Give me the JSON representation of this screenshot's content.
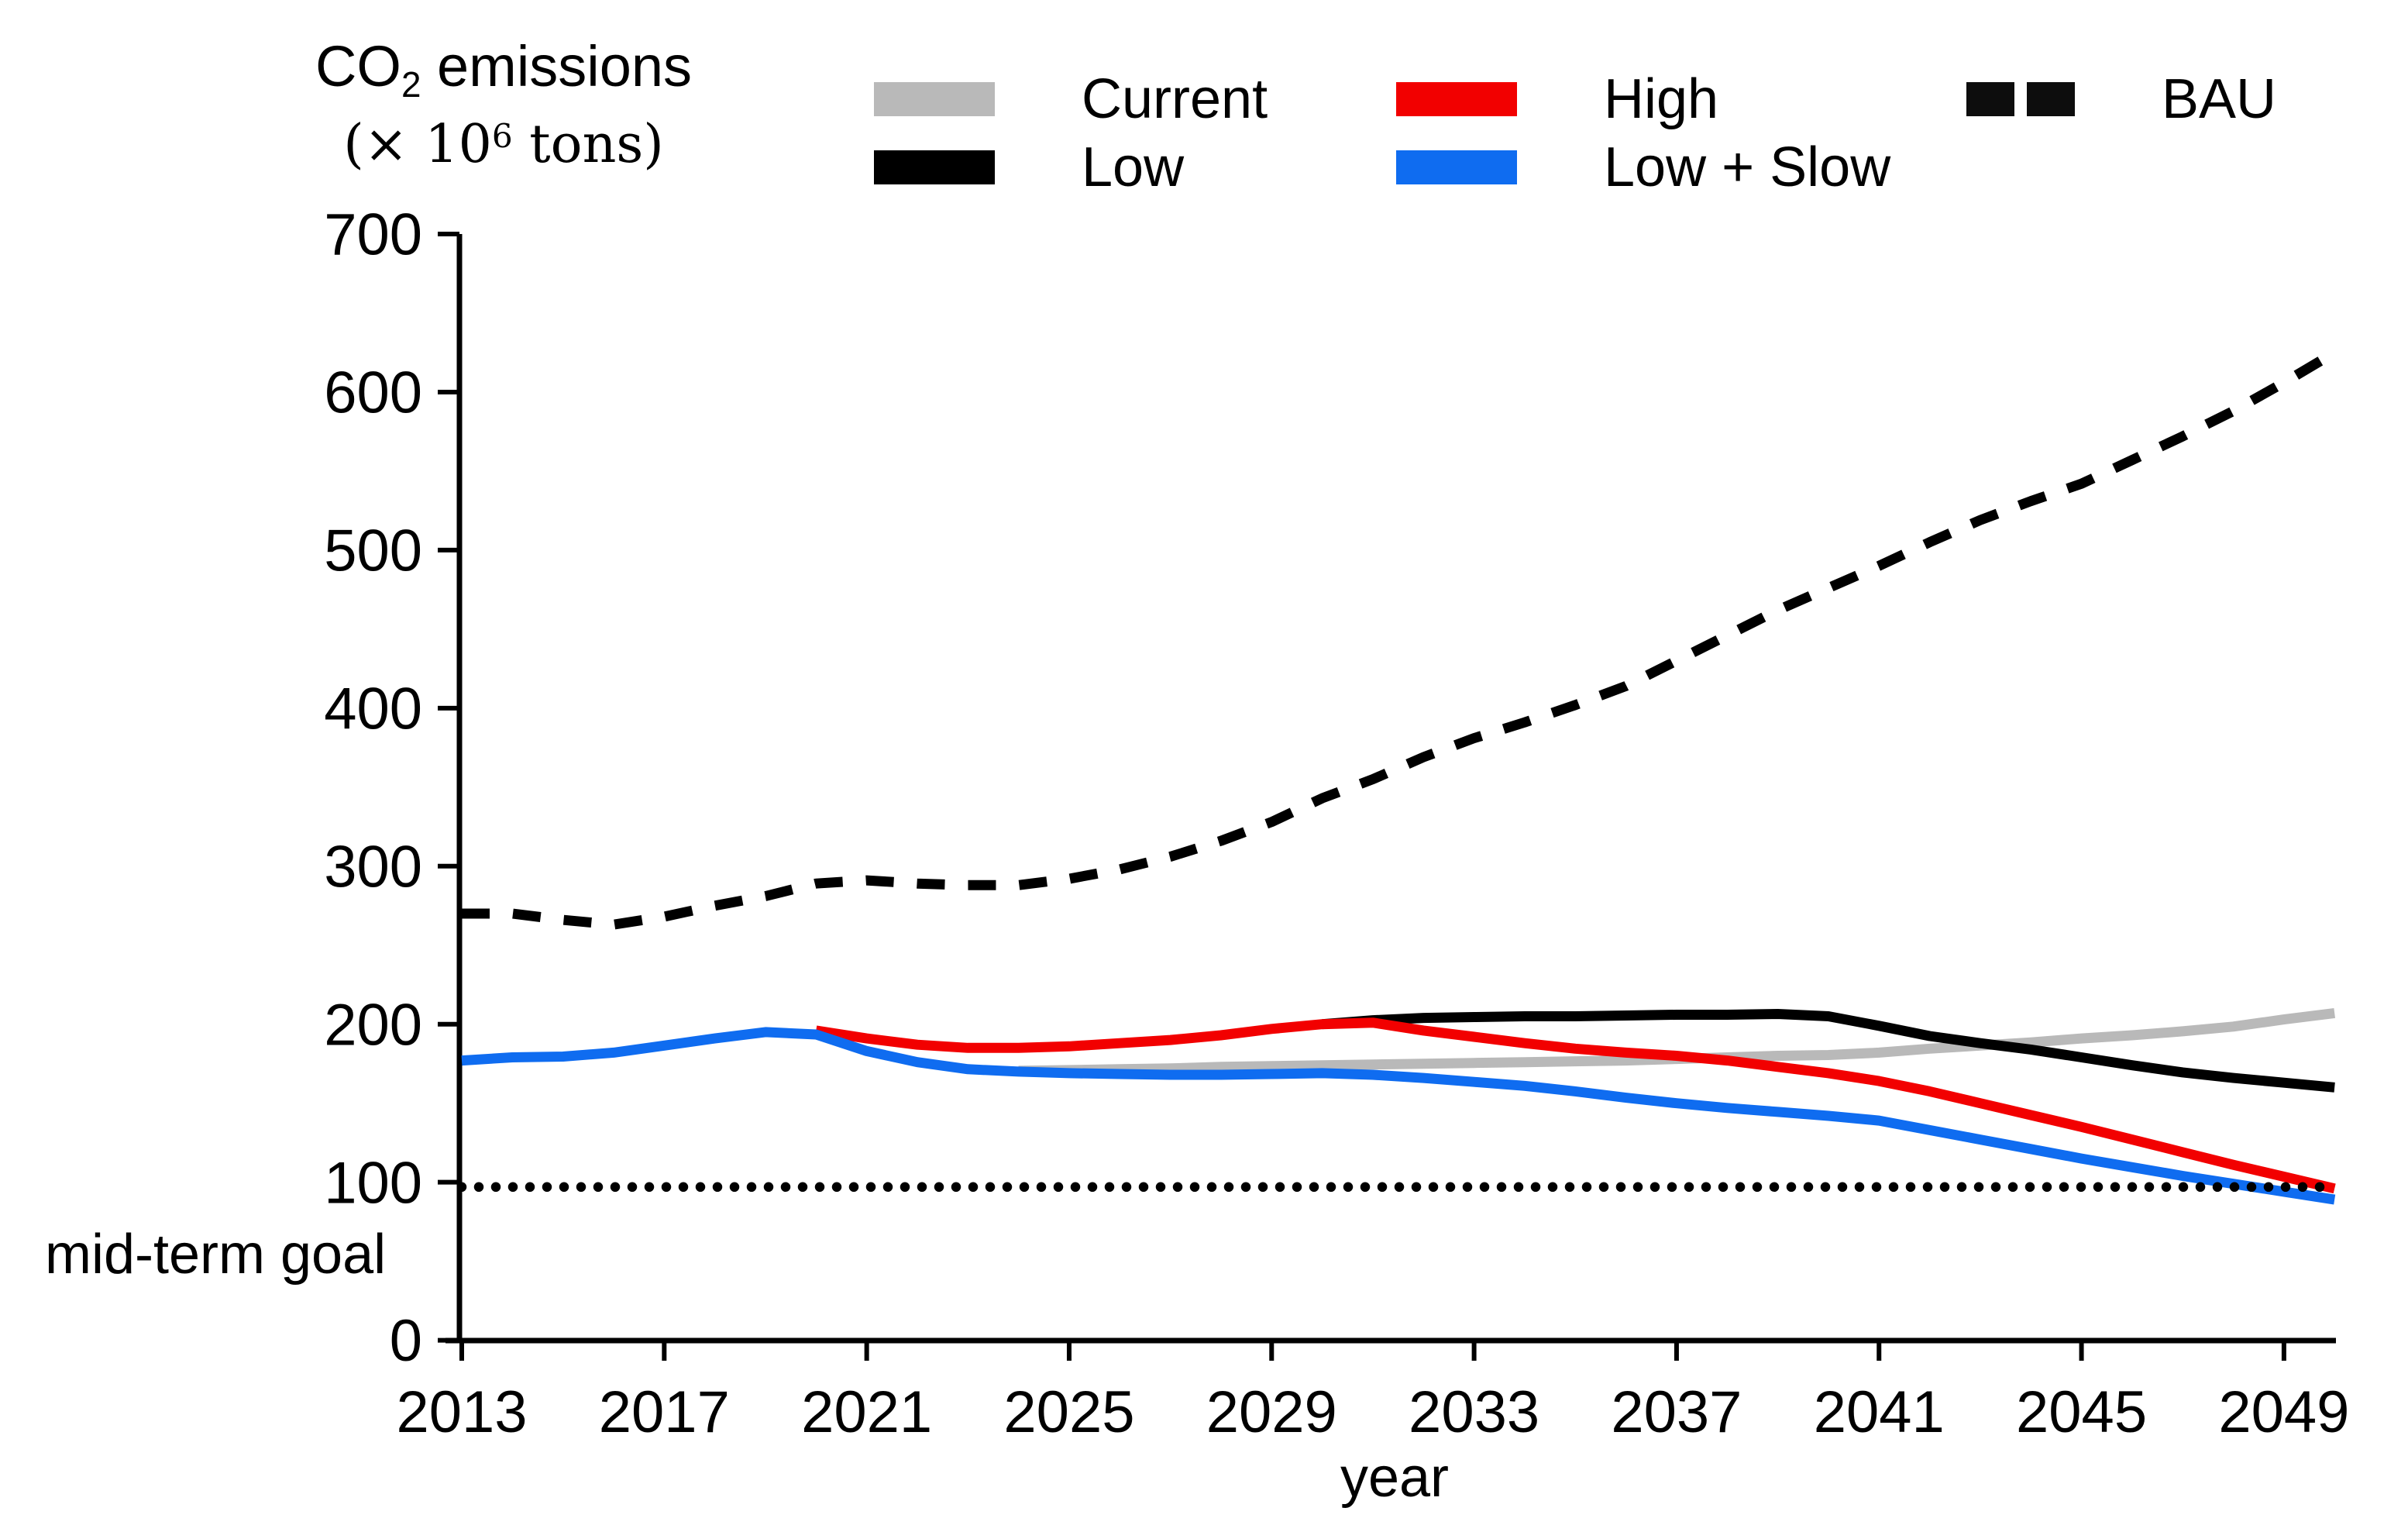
{
  "title": {
    "co2_pre": "CO",
    "co2_sub": "2",
    "co2_post": " emissions",
    "units_pre": "(× 10",
    "units_sup": "6",
    "units_post": " tons)"
  },
  "axes": {
    "x": {
      "label": "year",
      "range": [
        2013,
        2050
      ],
      "ticks": [
        2013,
        2017,
        2021,
        2025,
        2029,
        2033,
        2037,
        2041,
        2045,
        2049
      ]
    },
    "y": {
      "range": [
        0,
        700
      ],
      "ticks": [
        0,
        100,
        200,
        300,
        400,
        500,
        600,
        700
      ]
    }
  },
  "annotations": {
    "goal_label": "mid-term goal",
    "goal_value": 97
  },
  "legend": {
    "items": [
      {
        "label": "Current",
        "color": "#b9b9b9",
        "swatch": "bar"
      },
      {
        "label": "Low",
        "color": "#000000",
        "swatch": "bar"
      },
      {
        "label": "High",
        "color": "#f20000",
        "swatch": "bar"
      },
      {
        "label": "Low + Slow",
        "color": "#0f6cf0",
        "swatch": "bar"
      },
      {
        "label": "BAU",
        "color": "#0d0d0d",
        "swatch": "dash-pair"
      }
    ]
  },
  "chart_data": {
    "type": "line",
    "title": "CO2 emissions (× 10^6 tons)",
    "xlabel": "year",
    "ylabel": "CO2 emissions (× 10^6 tons)",
    "x_range": [
      2013,
      2050
    ],
    "y_range": [
      0,
      700
    ],
    "x_step": 1,
    "grid": false,
    "legend_position": "top",
    "goal_line": {
      "label": "mid-term goal",
      "value": 97,
      "style": "dotted",
      "color": "#000000",
      "x_start": 2013,
      "x_end": 2049.8
    },
    "series": [
      {
        "name": "Current",
        "color": "#b9b9b9",
        "width": 13,
        "dash": null,
        "x0": 2024,
        "values": [
          170.5,
          171,
          171.5,
          172,
          173,
          173.5,
          174,
          174.5,
          175,
          175.5,
          176,
          176.5,
          177,
          178,
          179,
          180,
          180.5,
          182,
          184.5,
          186.5,
          188.5,
          191,
          193,
          195.5,
          198.5,
          203,
          207
        ]
      },
      {
        "name": "Low",
        "color": "#000000",
        "width": 13,
        "dash": null,
        "x0": 2030,
        "values": [
          200,
          202.5,
          204,
          204.5,
          205,
          205,
          205.5,
          206,
          206,
          206.5,
          205,
          199,
          192.5,
          188,
          184,
          179,
          174,
          169.5,
          166,
          163,
          160
        ]
      },
      {
        "name": "High",
        "color": "#f20000",
        "width": 13,
        "dash": null,
        "x0": 2020,
        "values": [
          196,
          191,
          187,
          185,
          185,
          186,
          188,
          190,
          193,
          197,
          200,
          201,
          196,
          192,
          188,
          184.5,
          182,
          180,
          177,
          173,
          169,
          164,
          157.5,
          150,
          142.5,
          135,
          127,
          119,
          111,
          103.5,
          96
        ]
      },
      {
        "name": "Low + Slow",
        "color": "#0f6cf0",
        "width": 13,
        "dash": null,
        "x0": 2013,
        "values": [
          177,
          179,
          179.5,
          182,
          186.5,
          191,
          195,
          193.5,
          183,
          176,
          171.5,
          170,
          169,
          168.5,
          168,
          168,
          168.5,
          169,
          168,
          166,
          163.5,
          161,
          157.5,
          153.5,
          150,
          147,
          144.5,
          142,
          139,
          133,
          127,
          121,
          115,
          109.5,
          104,
          99,
          94,
          89
        ]
      },
      {
        "name": "BAU",
        "color": "#000000",
        "width": 13,
        "dash": "36 30",
        "x0": 2013,
        "values": [
          270,
          270,
          266,
          263,
          268,
          275,
          281,
          289,
          291,
          289,
          288,
          288,
          292,
          298,
          306,
          316,
          328,
          343,
          355,
          369,
          381,
          391,
          402,
          414,
          430,
          446,
          462,
          476,
          490,
          505,
          519,
          531,
          542,
          557,
          572,
          588,
          606,
          625
        ]
      }
    ]
  }
}
